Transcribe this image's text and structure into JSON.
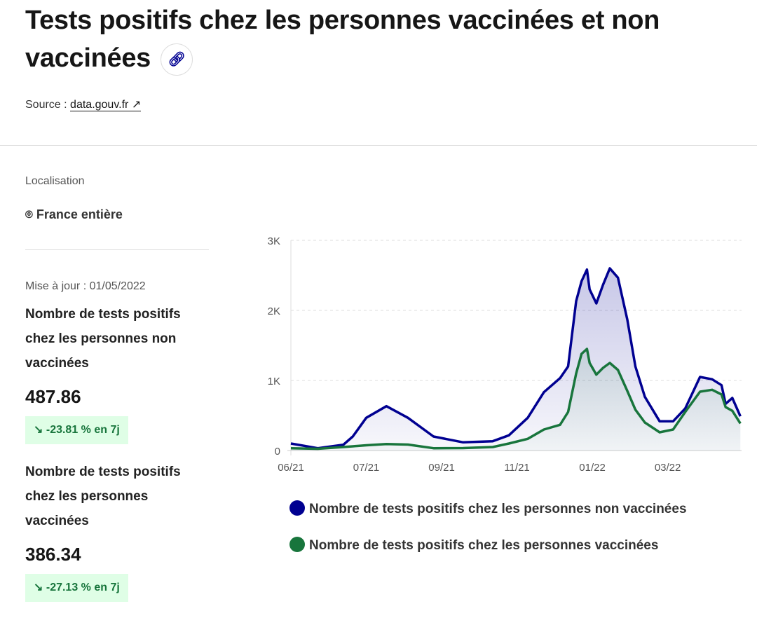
{
  "header": {
    "title": "Tests positifs chez les personnes vaccinées et non vaccinées",
    "source_label": "Source :",
    "source_link": "data.gouv.fr"
  },
  "sidebar": {
    "location_label": "Localisation",
    "location": "France entière",
    "updated": "Mise à jour : 01/05/2022",
    "indicators": [
      {
        "label": "Nombre de tests positifs chez les personnes non vaccinées",
        "value": "487.86",
        "change": "-23.81 % en 7j"
      },
      {
        "label": "Nombre de tests positifs chez les personnes vaccinées",
        "value": "386.34",
        "change": "-27.13 % en 7j"
      }
    ]
  },
  "colors": {
    "unvaccinated": "#000091",
    "vaccinated": "#18753c",
    "badge_bg": "#dffee6"
  },
  "chart_data": {
    "type": "area",
    "ylim": [
      0,
      3000
    ],
    "yticks": [
      {
        "v": 0,
        "label": "0"
      },
      {
        "v": 1000,
        "label": "1K"
      },
      {
        "v": 2000,
        "label": "2K"
      },
      {
        "v": 3000,
        "label": "3K"
      }
    ],
    "xticks": [
      {
        "d": "2021-06-01",
        "label": "06/21"
      },
      {
        "d": "2021-07-27",
        "label": "07/21"
      },
      {
        "d": "2021-09-21",
        "label": "09/21"
      },
      {
        "d": "2021-11-16",
        "label": "11/21"
      },
      {
        "d": "2022-01-11",
        "label": "01/22"
      },
      {
        "d": "2022-03-08",
        "label": "03/22"
      }
    ],
    "grid": true,
    "legend": "bottom",
    "x": [
      "2021-06-01",
      "2021-06-21",
      "2021-07-10",
      "2021-07-17",
      "2021-07-27",
      "2021-08-11",
      "2021-08-27",
      "2021-09-15",
      "2021-10-07",
      "2021-10-29",
      "2021-11-10",
      "2021-11-24",
      "2021-12-06",
      "2021-12-18",
      "2021-12-24",
      "2021-12-30",
      "2022-01-03",
      "2022-01-07",
      "2022-01-09",
      "2022-01-14",
      "2022-01-19",
      "2022-01-24",
      "2022-01-30",
      "2022-02-06",
      "2022-02-12",
      "2022-02-19",
      "2022-03-02",
      "2022-03-12",
      "2022-03-21",
      "2022-04-01",
      "2022-04-10",
      "2022-04-17",
      "2022-04-20",
      "2022-04-25",
      "2022-05-01"
    ],
    "series": [
      {
        "name": "Nombre de tests positifs chez les personnes non vaccinées",
        "values": [
          100,
          33,
          83,
          200,
          467,
          633,
          467,
          200,
          117,
          133,
          217,
          467,
          833,
          1033,
          1200,
          2133,
          2417,
          2583,
          2300,
          2100,
          2367,
          2600,
          2467,
          1867,
          1200,
          767,
          417,
          417,
          600,
          1050,
          1017,
          933,
          667,
          750,
          487.86
        ]
      },
      {
        "name": "Nombre de tests positifs chez les personnes vaccinées",
        "values": [
          33,
          25,
          50,
          60,
          75,
          93,
          85,
          33,
          35,
          50,
          100,
          167,
          300,
          367,
          550,
          1100,
          1380,
          1450,
          1250,
          1083,
          1180,
          1250,
          1150,
          850,
          583,
          400,
          260,
          300,
          550,
          840,
          867,
          800,
          620,
          567,
          386.34
        ]
      }
    ]
  }
}
